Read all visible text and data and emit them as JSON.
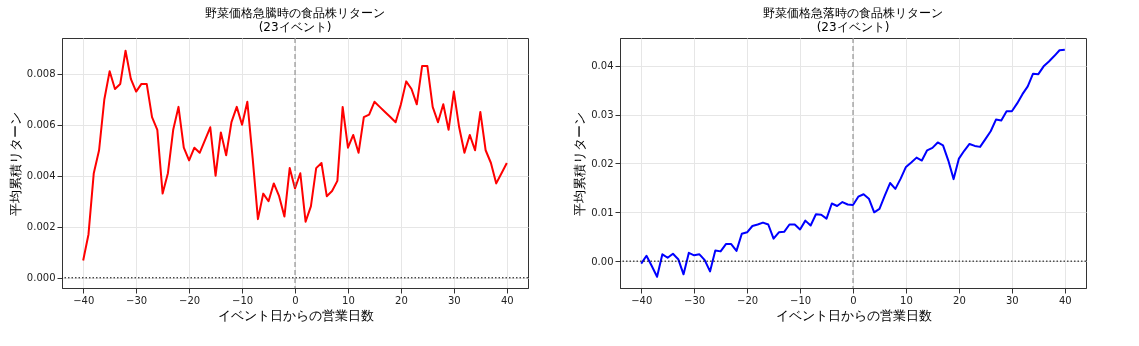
{
  "chart_data": [
    {
      "type": "line",
      "title": "野菜価格急騰時の食品株リターン\n(23イベント)",
      "xlabel": "イベント日からの営業日数",
      "ylabel": "平均累積リターン",
      "x": [
        -40,
        -39,
        -38,
        -37,
        -36,
        -35,
        -34,
        -33,
        -32,
        -31,
        -30,
        -29,
        -28,
        -27,
        -26,
        -25,
        -24,
        -23,
        -22,
        -21,
        -20,
        -19,
        -18,
        -17,
        -16,
        -15,
        -14,
        -13,
        -12,
        -11,
        -10,
        -9,
        -8,
        -7,
        -6,
        -5,
        -4,
        -3,
        -2,
        -1,
        0,
        1,
        2,
        3,
        4,
        5,
        6,
        7,
        8,
        9,
        10,
        11,
        12,
        13,
        14,
        15,
        16,
        17,
        18,
        19,
        20,
        21,
        22,
        23,
        24,
        25,
        26,
        27,
        28,
        29,
        30,
        31,
        32,
        33,
        34,
        35,
        36,
        37,
        38,
        39,
        40
      ],
      "series": [
        {
          "color": "#ff0000",
          "values": [
            0.00068,
            0.0017,
            0.0041,
            0.005,
            0.007,
            0.0081,
            0.0074,
            0.0076,
            0.0089,
            0.0078,
            0.0073,
            0.0076,
            0.0076,
            0.0063,
            0.0058,
            0.0033,
            0.0041,
            0.0058,
            0.0067,
            0.0051,
            0.0046,
            0.0051,
            0.0049,
            0.0054,
            0.0059,
            0.004,
            0.0057,
            0.0048,
            0.0061,
            0.0067,
            0.006,
            0.0069,
            0.0047,
            0.0023,
            0.0033,
            0.003,
            0.0037,
            0.0032,
            0.0024,
            0.0043,
            0.0035,
            0.0041,
            0.0022,
            0.0028,
            0.0043,
            0.0045,
            0.0032,
            0.0034,
            0.0038,
            0.0067,
            0.0051,
            0.0056,
            0.0049,
            0.0063,
            0.0064,
            0.0069,
            0.0067,
            0.0065,
            0.0063,
            0.0061,
            0.0068,
            0.0077,
            0.0074,
            0.0068,
            0.0083,
            0.0083,
            0.0067,
            0.0061,
            0.0068,
            0.0058,
            0.0073,
            0.0059,
            0.0049,
            0.0056,
            0.005,
            0.0065,
            0.005,
            0.0045,
            0.0037,
            0.0041,
            0.0045
          ]
        }
      ],
      "xlim": [
        -44,
        44
      ],
      "xticks": [
        {
          "value": -40,
          "label": "−40"
        },
        {
          "value": -30,
          "label": "−30"
        },
        {
          "value": -20,
          "label": "−20"
        },
        {
          "value": -10,
          "label": "−10"
        },
        0,
        10,
        20,
        30,
        40
      ],
      "ylim": [
        -0.0004,
        0.0094
      ],
      "yticks": [
        {
          "value": 0,
          "label": "0.000"
        },
        0.002,
        0.004,
        0.006,
        0.008
      ],
      "ref_lines": [
        {
          "axis": "y",
          "value": 0,
          "color": "#000000",
          "line_style": "dotted"
        },
        {
          "axis": "x",
          "value": 0,
          "color": "#808080",
          "line_style": "dashed"
        }
      ],
      "grid": true,
      "line_style": "solid"
    },
    {
      "type": "line",
      "title": "野菜価格急落時の食品株リターン\n(23イベント)",
      "xlabel": "イベント日からの営業日数",
      "ylabel": "平均累積リターン",
      "x": [
        -40,
        -39,
        -38,
        -37,
        -36,
        -35,
        -34,
        -33,
        -32,
        -31,
        -30,
        -29,
        -28,
        -27,
        -26,
        -25,
        -24,
        -23,
        -22,
        -21,
        -20,
        -19,
        -18,
        -17,
        -16,
        -15,
        -14,
        -13,
        -12,
        -11,
        -10,
        -9,
        -8,
        -7,
        -6,
        -5,
        -4,
        -3,
        -2,
        -1,
        0,
        1,
        2,
        3,
        4,
        5,
        6,
        7,
        8,
        9,
        10,
        11,
        12,
        13,
        14,
        15,
        16,
        17,
        18,
        19,
        20,
        21,
        22,
        23,
        24,
        25,
        26,
        27,
        28,
        29,
        30,
        31,
        32,
        33,
        34,
        35,
        36,
        37,
        38,
        39,
        40
      ],
      "series": [
        {
          "color": "#0000ff",
          "values": [
            -0.0005,
            0.0011,
            -0.001,
            -0.0032,
            0.0014,
            0.0007,
            0.0015,
            0.0004,
            -0.0027,
            0.0017,
            0.0012,
            0.0014,
            0.0002,
            -0.0021,
            0.0022,
            0.002,
            0.0035,
            0.0035,
            0.0021,
            0.0056,
            0.0059,
            0.0072,
            0.0075,
            0.0079,
            0.0075,
            0.0046,
            0.0059,
            0.006,
            0.0075,
            0.0075,
            0.0065,
            0.0083,
            0.0073,
            0.0096,
            0.0095,
            0.0087,
            0.0118,
            0.0113,
            0.0121,
            0.0116,
            0.0115,
            0.0132,
            0.0137,
            0.0128,
            0.01,
            0.0107,
            0.0134,
            0.016,
            0.0148,
            0.0169,
            0.0193,
            0.0202,
            0.0212,
            0.0206,
            0.0227,
            0.0232,
            0.0243,
            0.0237,
            0.0206,
            0.0168,
            0.021,
            0.0226,
            0.024,
            0.0236,
            0.0234,
            0.025,
            0.0266,
            0.029,
            0.0288,
            0.0307,
            0.0307,
            0.0323,
            0.0342,
            0.0358,
            0.0384,
            0.0383,
            0.0399,
            0.0409,
            0.042,
            0.0432,
            0.0433
          ]
        }
      ],
      "xlim": [
        -44,
        44
      ],
      "xticks": [
        {
          "value": -40,
          "label": "−40"
        },
        {
          "value": -30,
          "label": "−30"
        },
        {
          "value": -20,
          "label": "−20"
        },
        {
          "value": -10,
          "label": "−10"
        },
        0,
        10,
        20,
        30,
        40
      ],
      "ylim": [
        -0.0055,
        0.0457
      ],
      "yticks": [
        {
          "value": 0,
          "label": "0.00"
        },
        0.01,
        0.02,
        0.03,
        0.04
      ],
      "ref_lines": [
        {
          "axis": "y",
          "value": 0,
          "color": "#000000",
          "line_style": "dotted"
        },
        {
          "axis": "x",
          "value": 0,
          "color": "#808080",
          "line_style": "dashed"
        }
      ],
      "grid": true,
      "line_style": "solid"
    }
  ]
}
